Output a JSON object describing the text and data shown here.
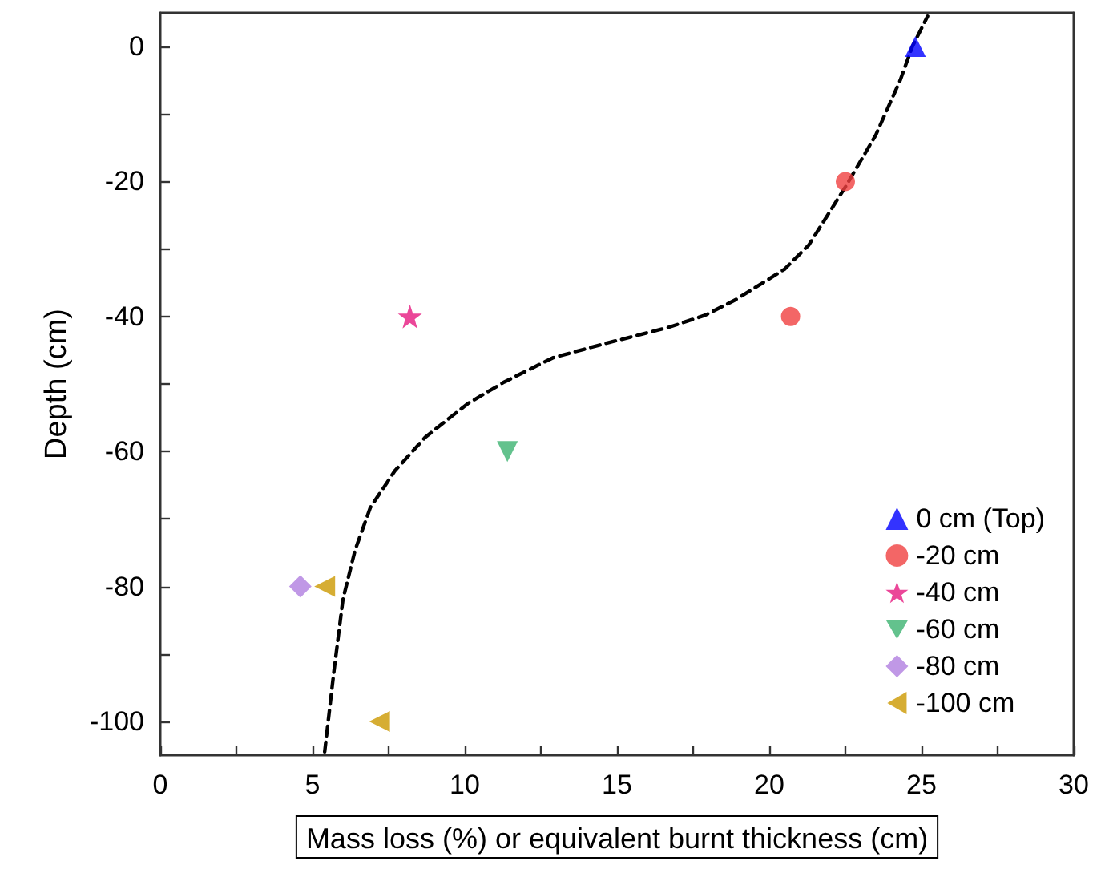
{
  "chart_data": {
    "type": "scatter",
    "xlabel": "Mass loss (%) or equivalent burnt thickness (cm)",
    "ylabel": "Depth (cm)",
    "xlim": [
      0,
      30
    ],
    "xticks": [
      0,
      {
        "value": 2.5,
        "label": null
      },
      5,
      {
        "value": 7.5,
        "label": null
      },
      10,
      {
        "value": 12.5,
        "label": null
      },
      15,
      {
        "value": 17.5,
        "label": null
      },
      20,
      {
        "value": 22.5,
        "label": null
      },
      25,
      {
        "value": 27.5,
        "label": null
      },
      30
    ],
    "ylim": [
      -105,
      5
    ],
    "yticks": [
      0,
      {
        "value": -10,
        "label": null
      },
      -20,
      {
        "value": -30,
        "label": null
      },
      -40,
      {
        "value": -50,
        "label": null
      },
      -60,
      {
        "value": -70,
        "label": null
      },
      -80,
      {
        "value": -90,
        "label": null
      },
      -100
    ],
    "grid": false,
    "legend": "bottom right",
    "series": [
      {
        "name": "0 cm (Top)",
        "color": "#0000ff",
        "marker": "triangle",
        "x": [
          24.8
        ],
        "values": [
          0
        ]
      },
      {
        "name": "-20 cm",
        "color": "#f04040",
        "marker": "circle",
        "x": [
          22.5,
          20.7
        ],
        "values": [
          -20,
          -40
        ]
      },
      {
        "name": "-40 cm",
        "color": "#e6197f",
        "marker": "star",
        "x": [
          8.2
        ],
        "values": [
          -40
        ]
      },
      {
        "name": "-60 cm",
        "color": "#3cb371",
        "marker": "triangle-down",
        "x": [
          11.4
        ],
        "values": [
          -60
        ]
      },
      {
        "name": "-80 cm",
        "color": "#b07ee0",
        "marker": "diamond",
        "x": [
          4.6
        ],
        "values": [
          -80
        ]
      },
      {
        "name": "-100 cm",
        "color": "#cc9900",
        "marker": "triangle-left",
        "x": [
          5.4,
          7.2
        ],
        "values": [
          -80,
          -100
        ]
      },
      {
        "type": "line",
        "color": "#000000",
        "marker": "none",
        "line_style": "dashed",
        "x": [
          5.4,
          5.7,
          6.0,
          6.4,
          6.9,
          7.7,
          8.7,
          10.1,
          11.3,
          12.9,
          14.7,
          16.7,
          17.9,
          18.9,
          20.5,
          21.3,
          22.5,
          23.5,
          24.3,
          24.7,
          25.2
        ],
        "values": [
          -104.5,
          -92.7,
          -81.9,
          -74.6,
          -68.3,
          -62.9,
          -57.9,
          -52.9,
          -49.7,
          -46.1,
          -43.9,
          -41.6,
          -39.8,
          -37.5,
          -33.0,
          -29.4,
          -20.8,
          -13.1,
          -5.0,
          0,
          4.5
        ]
      }
    ]
  }
}
